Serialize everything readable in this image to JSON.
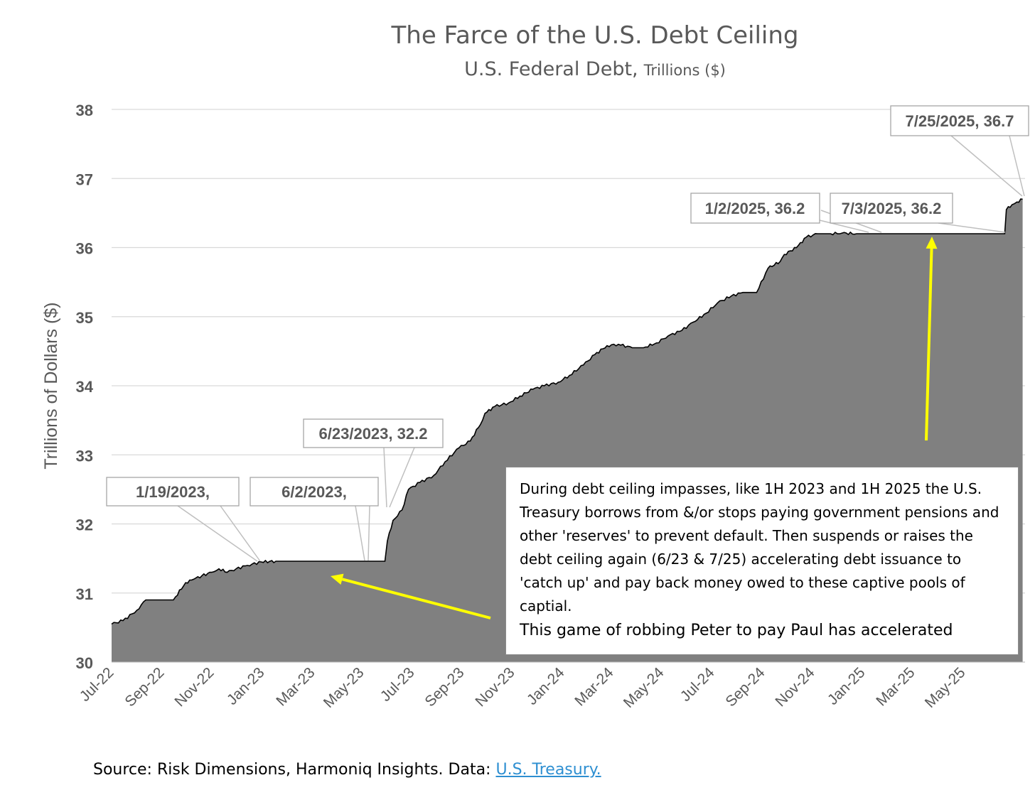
{
  "title": "The Farce of the U.S. Debt Ceiling",
  "subtitle_main": "U.S. Federal Debt,",
  "subtitle_units": "Trillions ($)",
  "note": {
    "body": "During debt ceiling impasses, like 1H 2023 and 1H 2025 the U.S. Treasury borrows from &/or stops paying government pensions and other 'reserves' to prevent default. Then suspends or raises the debt ceiling again (6/23 & 7/25) accelerating debt issuance to 'catch up' and pay back money owed to these captive pools of captial.",
    "footer": "This game of robbing Peter to pay Paul has accelerated"
  },
  "source": {
    "prefix": "Source: Risk Dimensions, Harmoniq Insights. Data: ",
    "link": "U.S. Treasury."
  },
  "colors": {
    "area": "#808080",
    "line": "#000000",
    "arrow": "#ffff00",
    "grid": "#d9d9d9",
    "text": "#595959"
  },
  "chart_data": {
    "type": "area",
    "title": "The Farce of the U.S. Debt Ceiling",
    "subtitle": "U.S. Federal Debt, Trillions ($)",
    "xlabel": "",
    "ylabel": "Trillions of Dollars ($)",
    "ylim": [
      30,
      38
    ],
    "yticks": [
      30,
      31,
      32,
      33,
      34,
      35,
      36,
      37,
      38
    ],
    "xlim": [
      "2022-07-01",
      "2025-07-28"
    ],
    "xticks": [
      "Jul-22",
      "Sep-22",
      "Nov-22",
      "Jan-23",
      "Mar-23",
      "May-23",
      "Jul-23",
      "Sep-23",
      "Nov-23",
      "Jan-24",
      "Mar-24",
      "May-24",
      "Jul-24",
      "Sep-24",
      "Nov-24",
      "Jan-25",
      "Mar-25",
      "May-25"
    ],
    "grid": true,
    "series": [
      {
        "name": "U.S. Federal Debt",
        "x": [
          "2022-07-01",
          "2022-07-15",
          "2022-08-01",
          "2022-08-12",
          "2022-09-01",
          "2022-09-15",
          "2022-09-30",
          "2022-10-10",
          "2022-10-20",
          "2022-11-01",
          "2022-11-10",
          "2022-11-20",
          "2022-12-01",
          "2022-12-15",
          "2023-01-01",
          "2023-01-19",
          "2023-03-01",
          "2023-04-15",
          "2023-06-02",
          "2023-06-05",
          "2023-06-12",
          "2023-06-23",
          "2023-07-01",
          "2023-07-15",
          "2023-08-01",
          "2023-08-15",
          "2023-09-01",
          "2023-09-15",
          "2023-09-30",
          "2023-10-03",
          "2023-10-15",
          "2023-11-01",
          "2023-11-15",
          "2023-12-01",
          "2023-12-15",
          "2024-01-01",
          "2024-01-15",
          "2024-02-01",
          "2024-02-15",
          "2024-03-01",
          "2024-03-15",
          "2024-04-01",
          "2024-04-15",
          "2024-05-01",
          "2024-05-15",
          "2024-06-01",
          "2024-06-15",
          "2024-07-01",
          "2024-07-15",
          "2024-08-01",
          "2024-08-15",
          "2024-09-01",
          "2024-09-15",
          "2024-09-30",
          "2024-10-05",
          "2024-10-20",
          "2024-11-01",
          "2024-11-15",
          "2024-12-01",
          "2024-12-15",
          "2025-01-02",
          "2025-02-01",
          "2025-03-01",
          "2025-04-01",
          "2025-05-01",
          "2025-06-01",
          "2025-07-03",
          "2025-07-05",
          "2025-07-12",
          "2025-07-18",
          "2025-07-25"
        ],
        "values": [
          30.55,
          30.6,
          30.75,
          30.9,
          30.9,
          30.9,
          31.15,
          31.2,
          31.25,
          31.3,
          31.35,
          31.3,
          31.35,
          31.4,
          31.45,
          31.46,
          31.46,
          31.46,
          31.46,
          31.75,
          32.05,
          32.2,
          32.5,
          32.6,
          32.7,
          32.9,
          33.1,
          33.2,
          33.5,
          33.6,
          33.7,
          33.75,
          33.85,
          33.95,
          34.0,
          34.05,
          34.15,
          34.3,
          34.45,
          34.58,
          34.6,
          34.55,
          34.55,
          34.62,
          34.72,
          34.8,
          34.92,
          35.05,
          35.2,
          35.3,
          35.35,
          35.35,
          35.7,
          35.8,
          35.9,
          36.0,
          36.15,
          36.2,
          36.2,
          36.21,
          36.2,
          36.2,
          36.2,
          36.2,
          36.2,
          36.2,
          36.2,
          36.55,
          36.62,
          36.66,
          36.7
        ]
      }
    ],
    "annotations": [
      {
        "text": "1/19/2023,",
        "x": "2023-01-19",
        "y": 31.46
      },
      {
        "text": "6/2/2023,",
        "x": "2023-06-02",
        "y": 31.46
      },
      {
        "text": "6/23/2023, 32.2",
        "x": "2023-06-23",
        "y": 32.2
      },
      {
        "text": "1/2/2025, 36.2",
        "x": "2025-01-02",
        "y": 36.2
      },
      {
        "text": "7/3/2025, 36.2",
        "x": "2025-07-03",
        "y": 36.2
      },
      {
        "text": "7/25/2025, 36.7",
        "x": "2025-07-25",
        "y": 36.7
      }
    ]
  }
}
